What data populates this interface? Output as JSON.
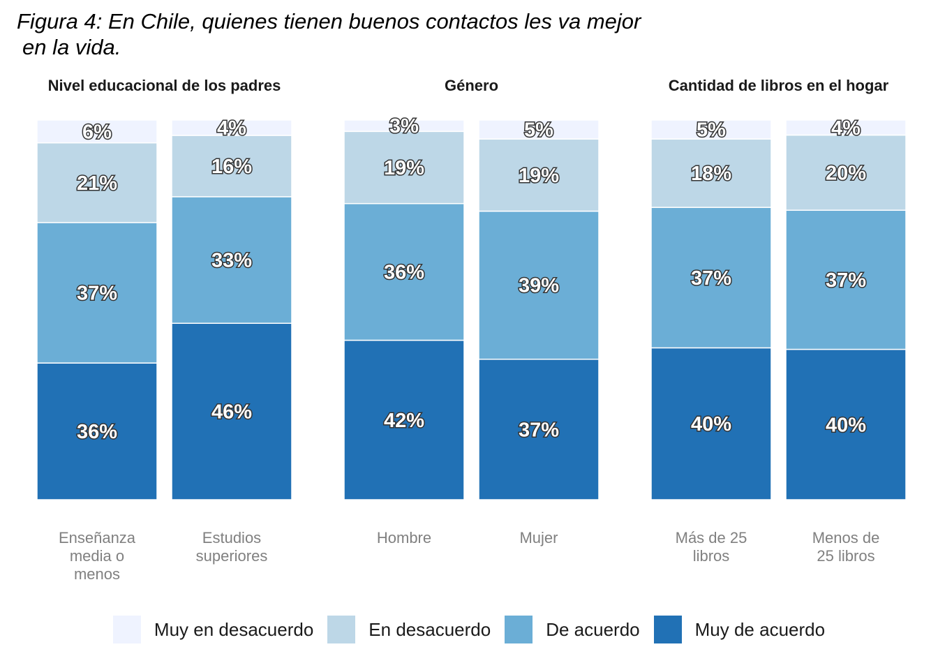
{
  "title": {
    "line1": "Figura 4: En Chile, quienes tienen buenos contactos les va mejor",
    "line2": "en la vida."
  },
  "colors": {
    "Muy en desacuerdo": "#eff3ff",
    "En desacuerdo": "#bdd7e7",
    "De acuerdo": "#6baed6",
    "Muy de acuerdo": "#2171b5"
  },
  "chart_data": {
    "type": "bar",
    "stacked": true,
    "normalized_percent": true,
    "legend_position": "bottom",
    "grid": false,
    "ylim": [
      0,
      100
    ],
    "series_order": [
      "Muy de acuerdo",
      "De acuerdo",
      "En desacuerdo",
      "Muy en desacuerdo"
    ],
    "panels": [
      {
        "title": "Nivel educacional de los padres",
        "bars": [
          {
            "category": [
              "Enseñanza",
              "media o",
              "menos"
            ],
            "values": {
              "Muy de acuerdo": 36,
              "De acuerdo": 37,
              "En desacuerdo": 21,
              "Muy en desacuerdo": 6
            }
          },
          {
            "category": [
              "Estudios",
              "superiores"
            ],
            "values": {
              "Muy de acuerdo": 46,
              "De acuerdo": 33,
              "En desacuerdo": 16,
              "Muy en desacuerdo": 4
            }
          }
        ]
      },
      {
        "title": "Género",
        "bars": [
          {
            "category": [
              "Hombre"
            ],
            "values": {
              "Muy de acuerdo": 42,
              "De acuerdo": 36,
              "En desacuerdo": 19,
              "Muy en desacuerdo": 3
            }
          },
          {
            "category": [
              "Mujer"
            ],
            "values": {
              "Muy de acuerdo": 37,
              "De acuerdo": 39,
              "En desacuerdo": 19,
              "Muy en desacuerdo": 5
            }
          }
        ]
      },
      {
        "title": "Cantidad de libros en el hogar",
        "bars": [
          {
            "category": [
              "Más de 25",
              "libros"
            ],
            "values": {
              "Muy de acuerdo": 40,
              "De acuerdo": 37,
              "En desacuerdo": 18,
              "Muy en desacuerdo": 5
            }
          },
          {
            "category": [
              "Menos de",
              "25 libros"
            ],
            "values": {
              "Muy de acuerdo": 40,
              "De acuerdo": 37,
              "En desacuerdo": 20,
              "Muy en desacuerdo": 4
            }
          }
        ]
      }
    ]
  },
  "legend": [
    "Muy en desacuerdo",
    "En desacuerdo",
    "De acuerdo",
    "Muy de acuerdo"
  ]
}
